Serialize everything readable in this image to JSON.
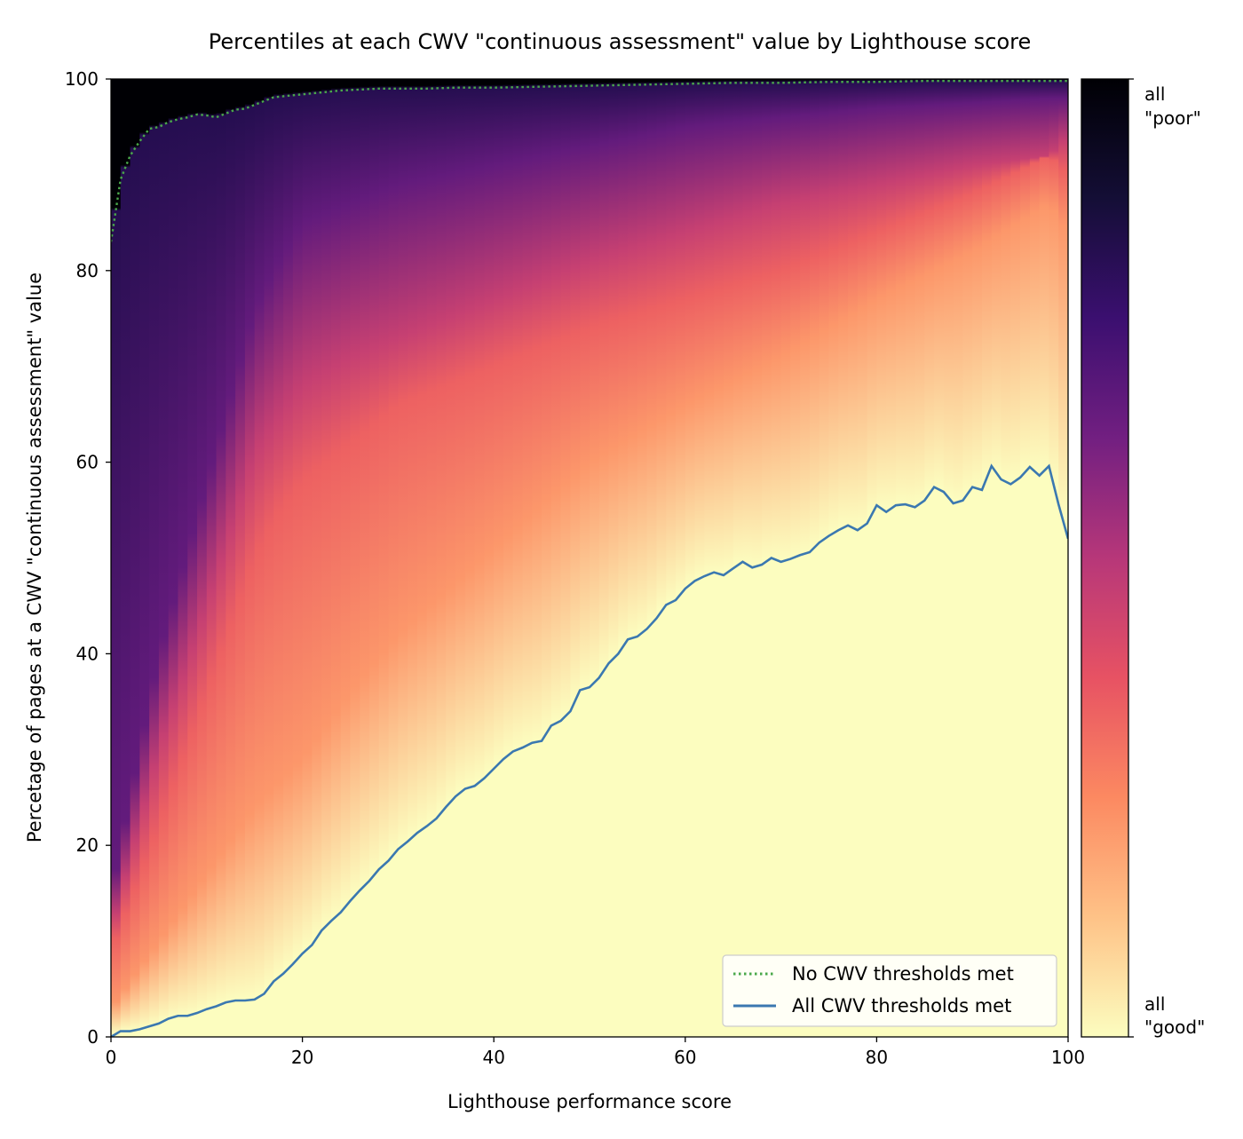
{
  "chart_data": {
    "type": "heatmap",
    "title": "Percentiles at each CWV \"continuous assessment\" value by Lighthouse score",
    "xlabel": "Lighthouse performance score",
    "ylabel": "Percetage of pages at a CWV \"continuous assessment\" value",
    "xlim": [
      0,
      100
    ],
    "ylim": [
      0,
      100
    ],
    "x_ticks": [
      0,
      20,
      40,
      60,
      80,
      100
    ],
    "y_ticks": [
      0,
      20,
      40,
      60,
      80,
      100
    ],
    "colormap": [
      "#fcfdbf",
      "#fec287",
      "#fc8961",
      "#e75263",
      "#b73779",
      "#721f81",
      "#3b0f70",
      "#140e36",
      "#000004"
    ],
    "colorbar": {
      "top_label_line1": "all",
      "top_label_line2": "\"poor\"",
      "bottom_label_line1": "all",
      "bottom_label_line2": "\"good\""
    },
    "legend_position": "lower-right",
    "series": [
      {
        "name": "No CWV thresholds met",
        "style": "dotted",
        "color": "#4aa84a",
        "x": [
          0,
          1,
          2,
          3,
          4,
          5,
          6,
          7,
          8,
          9,
          10,
          11,
          12,
          13,
          14,
          15,
          16,
          17,
          18,
          19,
          20,
          22,
          24,
          26,
          28,
          30,
          33,
          36,
          40,
          45,
          50,
          55,
          60,
          65,
          70,
          75,
          80,
          85,
          90,
          95,
          100
        ],
        "y": [
          83,
          89.5,
          92,
          93.5,
          94.8,
          95,
          95.5,
          95.8,
          96,
          96.3,
          96.2,
          96,
          96.4,
          96.8,
          96.9,
          97.3,
          97.7,
          98.1,
          98.2,
          98.3,
          98.4,
          98.6,
          98.8,
          98.9,
          99,
          99,
          99,
          99.1,
          99.1,
          99.2,
          99.3,
          99.4,
          99.5,
          99.6,
          99.6,
          99.7,
          99.7,
          99.8,
          99.8,
          99.8,
          99.8
        ]
      },
      {
        "name": "All CWV thresholds met",
        "style": "solid",
        "color": "#3b78b0",
        "x": [
          0,
          1,
          2,
          3,
          4,
          5,
          6,
          7,
          8,
          9,
          10,
          11,
          12,
          13,
          14,
          15,
          16,
          17,
          18,
          19,
          20,
          21,
          22,
          23,
          24,
          25,
          26,
          27,
          28,
          29,
          30,
          31,
          32,
          33,
          34,
          35,
          36,
          37,
          38,
          39,
          40,
          41,
          42,
          43,
          44,
          45,
          46,
          47,
          48,
          49,
          50,
          51,
          52,
          53,
          54,
          55,
          56,
          57,
          58,
          59,
          60,
          61,
          62,
          63,
          64,
          65,
          66,
          67,
          68,
          69,
          70,
          71,
          72,
          73,
          74,
          75,
          76,
          77,
          78,
          79,
          80,
          81,
          82,
          83,
          84,
          85,
          86,
          87,
          88,
          89,
          90,
          91,
          92,
          93,
          94,
          95,
          96,
          97,
          98,
          99,
          100
        ],
        "y": [
          0,
          0.6,
          0.6,
          0.8,
          1.1,
          1.4,
          1.9,
          2.2,
          2.2,
          2.5,
          2.9,
          3.2,
          3.6,
          3.8,
          3.8,
          3.9,
          4.5,
          5.8,
          6.6,
          7.6,
          8.7,
          9.6,
          11.1,
          12.1,
          13.0,
          14.2,
          15.3,
          16.3,
          17.5,
          18.4,
          19.6,
          20.4,
          21.3,
          22.0,
          22.8,
          24.0,
          25.1,
          25.9,
          26.2,
          27.0,
          28.0,
          29.0,
          29.8,
          30.2,
          30.7,
          30.9,
          32.5,
          33.0,
          34.0,
          36.2,
          36.5,
          37.5,
          39.0,
          40.0,
          41.5,
          41.8,
          42.6,
          43.7,
          45.1,
          45.6,
          46.8,
          47.6,
          48.1,
          48.5,
          48.2,
          48.9,
          49.6,
          49.0,
          49.3,
          50.0,
          49.6,
          49.9,
          50.3,
          50.6,
          51.6,
          52.3,
          52.9,
          53.4,
          52.9,
          53.6,
          55.5,
          54.8,
          55.5,
          55.6,
          55.3,
          56.0,
          57.4,
          56.9,
          55.7,
          56.0,
          57.4,
          57.1,
          59.6,
          58.2,
          57.7,
          58.4,
          59.5,
          58.6,
          59.6,
          55.6,
          52.0
        ]
      }
    ],
    "heatmap_bands": {
      "x": [
        0,
        5,
        10,
        15,
        17,
        20,
        25,
        30,
        40,
        50,
        60,
        70,
        80,
        90,
        98,
        100
      ],
      "band_20": [
        11,
        30,
        45,
        61,
        64,
        68,
        71,
        73,
        77,
        81,
        84,
        87,
        89,
        91,
        92,
        94
      ],
      "band_40": [
        15,
        40,
        58,
        76,
        80,
        85,
        87,
        89,
        91,
        93,
        95,
        96,
        97,
        97.5,
        98,
        98
      ],
      "band_60": [
        9,
        22,
        36,
        50,
        54,
        58,
        62,
        66,
        70,
        74,
        77,
        80,
        84,
        88,
        92,
        90
      ],
      "band_80": [
        3,
        10,
        17,
        24,
        26,
        29,
        36,
        42,
        51,
        60,
        66,
        71,
        77,
        82,
        87,
        84
      ]
    }
  }
}
